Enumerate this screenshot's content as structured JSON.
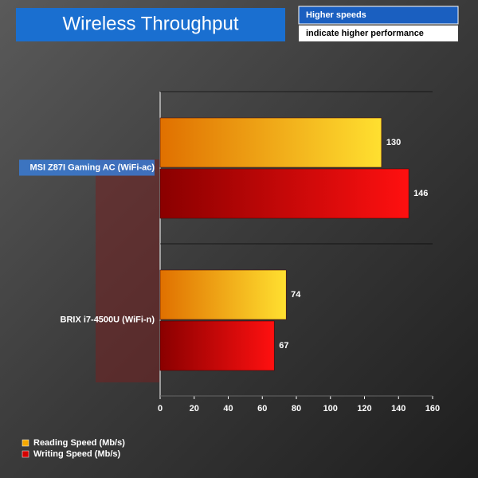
{
  "chart_data": {
    "type": "bar",
    "orientation": "horizontal",
    "title": "Wireless Throughput",
    "annotations": [
      "Higher speeds",
      "indicate higher performance"
    ],
    "categories": [
      "MSI Z87I Gaming AC (WiFi-ac)",
      "BRIX i7-4500U (WiFi-n)"
    ],
    "series": [
      {
        "name": "Reading Speed (Mb/s)",
        "color": "#f5a800",
        "values": [
          130,
          74
        ]
      },
      {
        "name": "Writing Speed (Mb/s)",
        "color": "#d40000",
        "values": [
          146,
          67
        ]
      }
    ],
    "xlim": [
      0,
      160
    ],
    "xticks": [
      0,
      20,
      40,
      60,
      80,
      100,
      120,
      140,
      160
    ],
    "legend": "bottom-left"
  }
}
